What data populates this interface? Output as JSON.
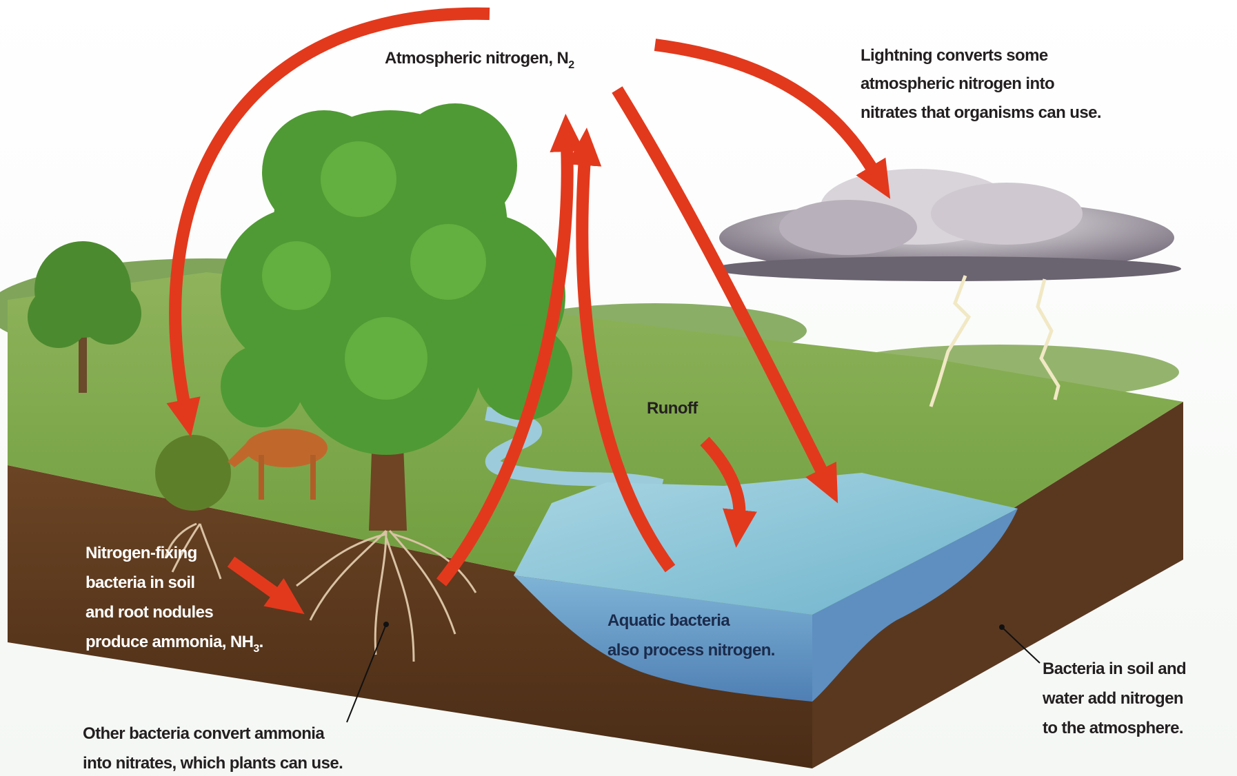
{
  "atmosphere": {
    "text": "Atmospheric nitrogen, N",
    "subscript": "2"
  },
  "lightning": {
    "lines": [
      "Lightning converts some",
      "atmospheric nitrogen into",
      "nitrates that organisms can use."
    ]
  },
  "runoff": {
    "text": "Runoff"
  },
  "nitrogen_fixing": {
    "lines": [
      "Nitrogen-fixing",
      "bacteria in soil",
      "and root nodules"
    ],
    "last_line": {
      "text": "produce ammonia, NH",
      "subscript": "3",
      "suffix": "."
    }
  },
  "aquatic": {
    "lines": [
      "Aquatic bacteria",
      "also process nitrogen."
    ]
  },
  "nitrifying": {
    "lines": [
      "Other bacteria convert ammonia",
      "into nitrates, which plants can use."
    ]
  },
  "denitrifying": {
    "lines": [
      "Bacteria in soil and",
      "water add nitrogen",
      "to the atmosphere."
    ]
  }
}
